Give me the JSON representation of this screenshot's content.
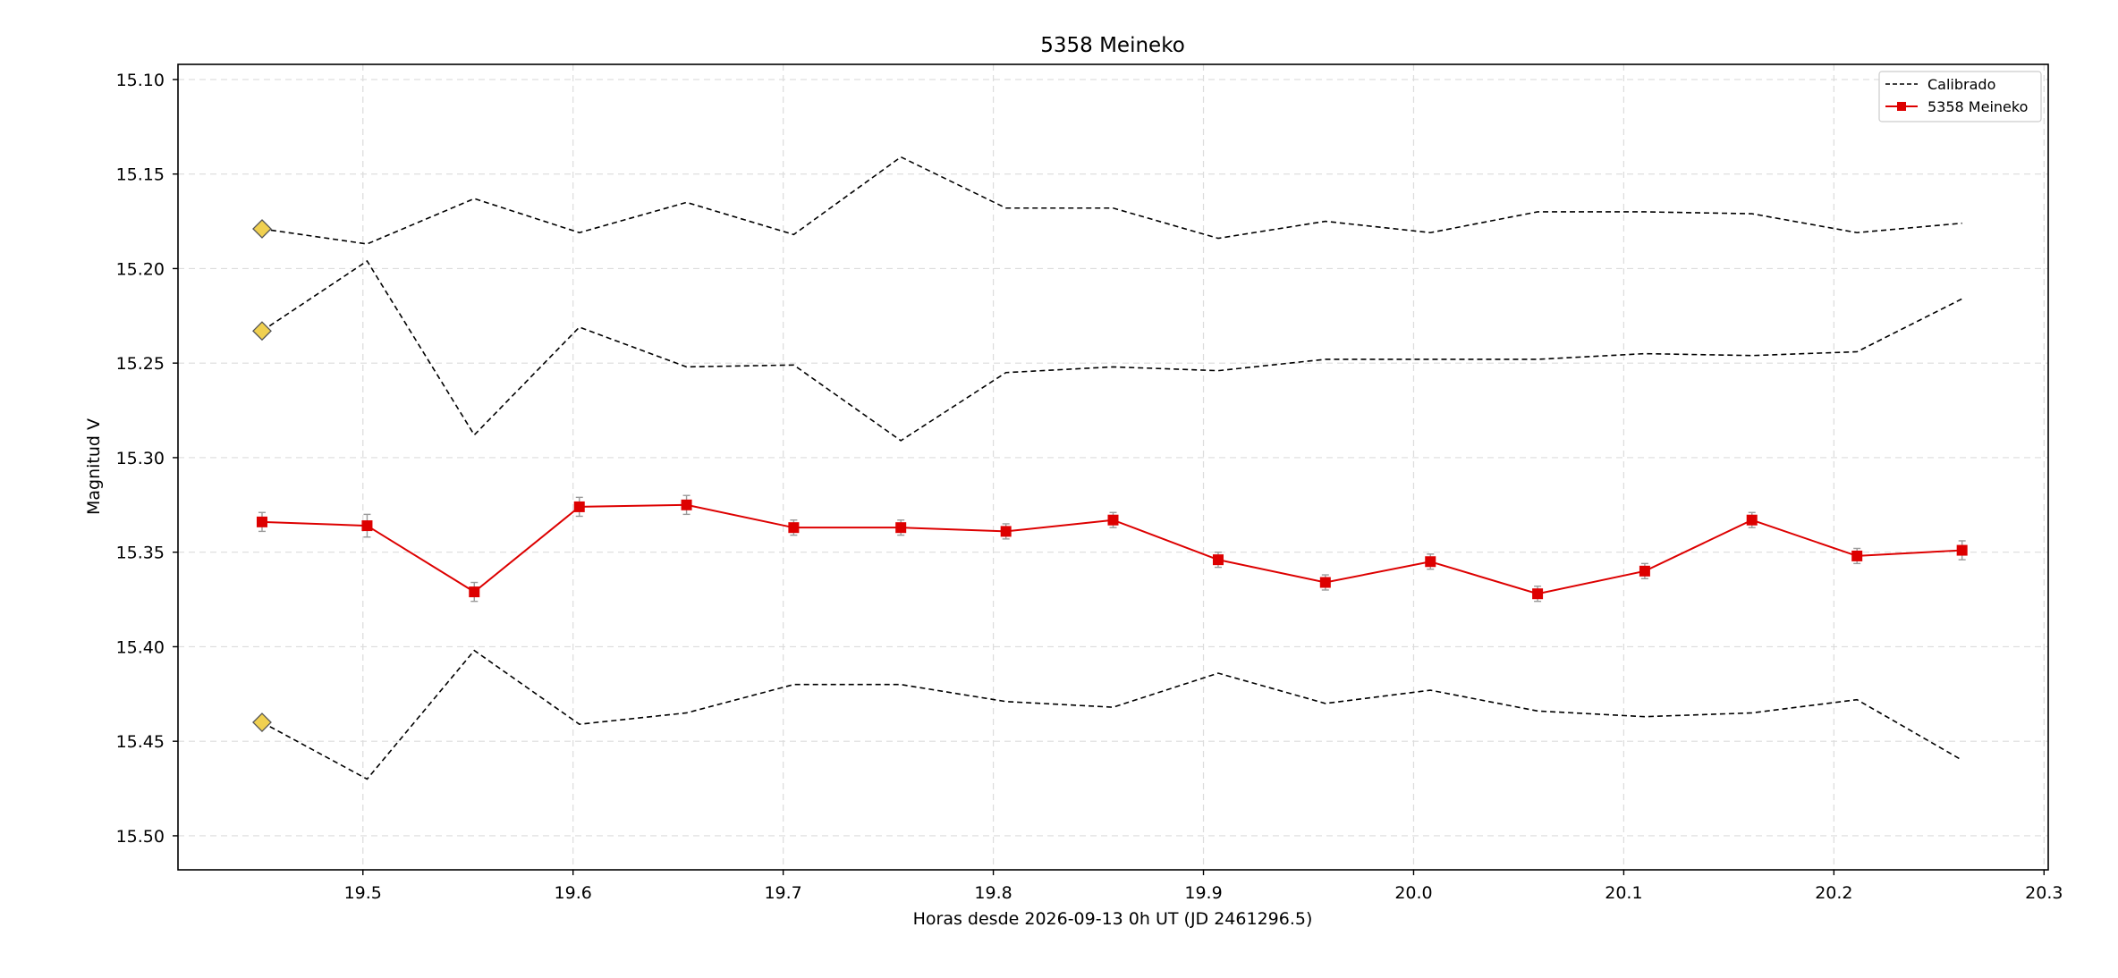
{
  "chart_data": {
    "type": "line",
    "title": "5358 Meineko",
    "xlabel": "Horas desde 2026-09-13 0h UT (JD 2461296.5)",
    "ylabel": "Magnitud V",
    "xlim": [
      19.412,
      20.302
    ],
    "ylim": [
      15.518,
      15.092
    ],
    "y_inverted": true,
    "grid": true,
    "legend_position": "top-right",
    "x_ticks": [
      "19.5",
      "19.6",
      "19.7",
      "19.8",
      "19.9",
      "20.0",
      "20.1",
      "20.2",
      "20.3"
    ],
    "y_ticks": [
      "15.10",
      "15.15",
      "15.20",
      "15.25",
      "15.30",
      "15.35",
      "15.40",
      "15.45",
      "15.50"
    ],
    "x": [
      19.452,
      19.502,
      19.553,
      19.603,
      19.654,
      19.705,
      19.756,
      19.806,
      19.857,
      19.907,
      19.958,
      20.008,
      20.059,
      20.11,
      20.161,
      20.211,
      20.261
    ],
    "series": [
      {
        "name": "Calibrado",
        "style": "dashed",
        "color": "#000000",
        "values": [
          15.179,
          15.187,
          15.163,
          15.181,
          15.165,
          15.182,
          15.141,
          15.168,
          15.168,
          15.184,
          15.175,
          15.181,
          15.17,
          15.17,
          15.171,
          15.181,
          15.176
        ],
        "start_marker": "diamond",
        "start_marker_color": "#f0d050"
      },
      {
        "name": "",
        "style": "dashed",
        "color": "#000000",
        "values": [
          15.233,
          15.196,
          15.288,
          15.231,
          15.252,
          15.251,
          15.291,
          15.255,
          15.252,
          15.254,
          15.248,
          15.248,
          15.248,
          15.245,
          15.246,
          15.244,
          15.216
        ],
        "start_marker": "diamond",
        "start_marker_color": "#f0d050"
      },
      {
        "name": "",
        "style": "dashed",
        "color": "#000000",
        "values": [
          15.44,
          15.47,
          15.402,
          15.441,
          15.435,
          15.42,
          15.42,
          15.429,
          15.432,
          15.414,
          15.43,
          15.423,
          15.434,
          15.437,
          15.435,
          15.428,
          15.46
        ],
        "start_marker": "diamond",
        "start_marker_color": "#f0d050"
      },
      {
        "name": "5358 Meineko",
        "style": "solid",
        "color": "#dd0000",
        "marker": "square",
        "values": [
          15.334,
          15.336,
          15.371,
          15.326,
          15.325,
          15.337,
          15.337,
          15.339,
          15.333,
          15.354,
          15.366,
          15.355,
          15.372,
          15.36,
          15.333,
          15.352,
          15.349
        ],
        "errors": [
          0.005,
          0.006,
          0.005,
          0.005,
          0.005,
          0.004,
          0.004,
          0.004,
          0.004,
          0.004,
          0.004,
          0.004,
          0.004,
          0.004,
          0.004,
          0.004,
          0.005
        ]
      }
    ],
    "legend": [
      {
        "label": "Calibrado",
        "style": "dashed",
        "color": "#000000"
      },
      {
        "label": "5358 Meineko",
        "style": "solid",
        "color": "#dd0000",
        "marker": "square"
      }
    ]
  }
}
